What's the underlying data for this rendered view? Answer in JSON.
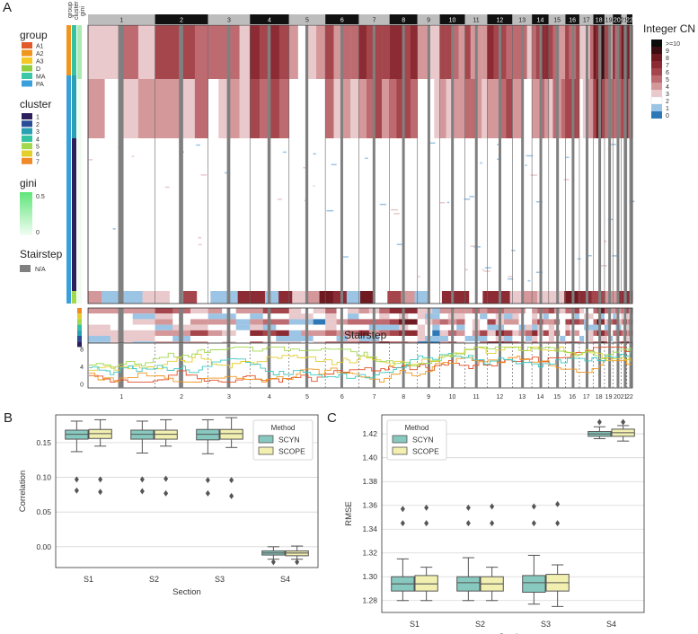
{
  "panel_labels": {
    "a": "A",
    "b": "B",
    "c": "C"
  },
  "sidebar": {
    "group_title": "group",
    "cluster_title": "cluster",
    "gini_title": "gini",
    "stairstep_title": "Stairstep",
    "group_items": [
      {
        "label": "A1",
        "color": "#e15a2a"
      },
      {
        "label": "A2",
        "color": "#f0961e"
      },
      {
        "label": "A3",
        "color": "#f5c825"
      },
      {
        "label": "D",
        "color": "#8fce3e"
      },
      {
        "label": "MA",
        "color": "#3cc8a8"
      },
      {
        "label": "PA",
        "color": "#3aa0dc"
      }
    ],
    "cluster_items": [
      {
        "label": "1",
        "color": "#2c1f5c"
      },
      {
        "label": "2",
        "color": "#2a4e96"
      },
      {
        "label": "3",
        "color": "#2aa0b4"
      },
      {
        "label": "4",
        "color": "#34c2a0"
      },
      {
        "label": "5",
        "color": "#a2d84e"
      },
      {
        "label": "6",
        "color": "#e2cf2c"
      },
      {
        "label": "7",
        "color": "#f08a28"
      }
    ],
    "gini_ticks": [
      "0.5",
      "0"
    ],
    "stairstep_na": "N/A",
    "na_color": "#808080"
  },
  "heatmap": {
    "column_header_labels": [
      "group",
      "cluster",
      "gini"
    ],
    "chromosomes": [
      "1",
      "2",
      "3",
      "4",
      "5",
      "6",
      "7",
      "8",
      "9",
      "10",
      "11",
      "12",
      "13",
      "14",
      "15",
      "16",
      "17",
      "18",
      "19",
      "20",
      "21",
      "22"
    ],
    "cn_legend_title": "Integer CN",
    "cn_legend": [
      {
        "label": ">=10",
        "color": "#0b0b0b"
      },
      {
        "label": "9",
        "color": "#3b0d10"
      },
      {
        "label": "8",
        "color": "#6e1a20"
      },
      {
        "label": "7",
        "color": "#8c2b33"
      },
      {
        "label": "6",
        "color": "#a5464c"
      },
      {
        "label": "5",
        "color": "#bd6b70"
      },
      {
        "label": "4",
        "color": "#d4989b"
      },
      {
        "label": "3",
        "color": "#e9c9cb"
      },
      {
        "label": "2",
        "color": "#ffffff"
      },
      {
        "label": "1",
        "color": "#9cc4e4"
      },
      {
        "label": "0",
        "color": "#2f78b8"
      }
    ]
  },
  "stairstep": {
    "title": "Stairstep",
    "y_ticks": [
      "8",
      "4",
      "0"
    ],
    "chromosomes": [
      "1",
      "2",
      "3",
      "4",
      "5",
      "6",
      "7",
      "8",
      "9",
      "10",
      "11",
      "12",
      "13",
      "14",
      "15",
      "16",
      "17",
      "18",
      "19",
      "20",
      "21",
      "22"
    ]
  },
  "chart_data": [
    {
      "type": "box",
      "title": "",
      "xlabel": "Section",
      "ylabel": "Correlation",
      "categories": [
        "S1",
        "S2",
        "S3",
        "S4"
      ],
      "ylim": [
        -0.03,
        0.19
      ],
      "yticks": [
        0.0,
        0.05,
        0.1,
        0.15
      ],
      "ytick_labels": [
        "0.00",
        "0.05",
        "0.10",
        "0.15"
      ],
      "legend": {
        "title": "Method",
        "position": "top-right"
      },
      "series": [
        {
          "name": "SCYN",
          "color": "#88c9bf",
          "boxes": [
            {
              "q1": 0.155,
              "median": 0.162,
              "q3": 0.168,
              "whisker_low": 0.137,
              "whisker_high": 0.181,
              "outliers": [
                0.097,
                0.081
              ]
            },
            {
              "q1": 0.155,
              "median": 0.162,
              "q3": 0.168,
              "whisker_low": 0.135,
              "whisker_high": 0.181,
              "outliers": [
                0.097,
                0.08
              ]
            },
            {
              "q1": 0.154,
              "median": 0.162,
              "q3": 0.169,
              "whisker_low": 0.134,
              "whisker_high": 0.183,
              "outliers": [
                0.096,
                0.077
              ]
            },
            {
              "q1": -0.012,
              "median": -0.009,
              "q3": -0.006,
              "whisker_low": -0.018,
              "whisker_high": 0.0,
              "outliers": [
                -0.022
              ]
            }
          ]
        },
        {
          "name": "SCOPE",
          "color": "#f2f0b0",
          "boxes": [
            {
              "q1": 0.156,
              "median": 0.163,
              "q3": 0.169,
              "whisker_low": 0.145,
              "whisker_high": 0.183,
              "outliers": [
                0.097,
                0.079
              ]
            },
            {
              "q1": 0.155,
              "median": 0.162,
              "q3": 0.168,
              "whisker_low": 0.145,
              "whisker_high": 0.183,
              "outliers": [
                0.098,
                0.077
              ]
            },
            {
              "q1": 0.155,
              "median": 0.163,
              "q3": 0.169,
              "whisker_low": 0.143,
              "whisker_high": 0.186,
              "outliers": [
                0.096,
                0.073
              ]
            },
            {
              "q1": -0.013,
              "median": -0.009,
              "q3": -0.006,
              "whisker_low": -0.018,
              "whisker_high": 0.001,
              "outliers": [
                -0.022
              ]
            }
          ]
        }
      ]
    },
    {
      "type": "box",
      "title": "",
      "xlabel": "Section",
      "ylabel": "RMSE",
      "categories": [
        "S1",
        "S2",
        "S3",
        "S4"
      ],
      "ylim": [
        1.27,
        1.436
      ],
      "yticks": [
        1.28,
        1.3,
        1.32,
        1.34,
        1.36,
        1.38,
        1.4,
        1.42
      ],
      "ytick_labels": [
        "1.28",
        "1.30",
        "1.32",
        "1.34",
        "1.36",
        "1.38",
        "1.40",
        "1.42"
      ],
      "legend": {
        "title": "Method",
        "position": "top-left"
      },
      "series": [
        {
          "name": "SCYN",
          "color": "#88c9bf",
          "boxes": [
            {
              "q1": 1.288,
              "median": 1.294,
              "q3": 1.3,
              "whisker_low": 1.28,
              "whisker_high": 1.315,
              "outliers": [
                1.357,
                1.345
              ]
            },
            {
              "q1": 1.288,
              "median": 1.295,
              "q3": 1.3,
              "whisker_low": 1.28,
              "whisker_high": 1.316,
              "outliers": [
                1.358,
                1.345
              ]
            },
            {
              "q1": 1.287,
              "median": 1.295,
              "q3": 1.301,
              "whisker_low": 1.277,
              "whisker_high": 1.318,
              "outliers": [
                1.359,
                1.345
              ]
            },
            {
              "q1": 1.418,
              "median": 1.42,
              "q3": 1.422,
              "whisker_low": 1.416,
              "whisker_high": 1.426,
              "outliers": [
                1.43
              ]
            }
          ]
        },
        {
          "name": "SCOPE",
          "color": "#f2f0b0",
          "boxes": [
            {
              "q1": 1.288,
              "median": 1.294,
              "q3": 1.301,
              "whisker_low": 1.28,
              "whisker_high": 1.308,
              "outliers": [
                1.358,
                1.345
              ]
            },
            {
              "q1": 1.288,
              "median": 1.294,
              "q3": 1.3,
              "whisker_low": 1.28,
              "whisker_high": 1.308,
              "outliers": [
                1.359,
                1.345
              ]
            },
            {
              "q1": 1.288,
              "median": 1.295,
              "q3": 1.302,
              "whisker_low": 1.275,
              "whisker_high": 1.31,
              "outliers": [
                1.361,
                1.345
              ]
            },
            {
              "q1": 1.418,
              "median": 1.421,
              "q3": 1.424,
              "whisker_low": 1.414,
              "whisker_high": 1.427,
              "outliers": [
                1.43
              ]
            }
          ]
        }
      ]
    }
  ]
}
